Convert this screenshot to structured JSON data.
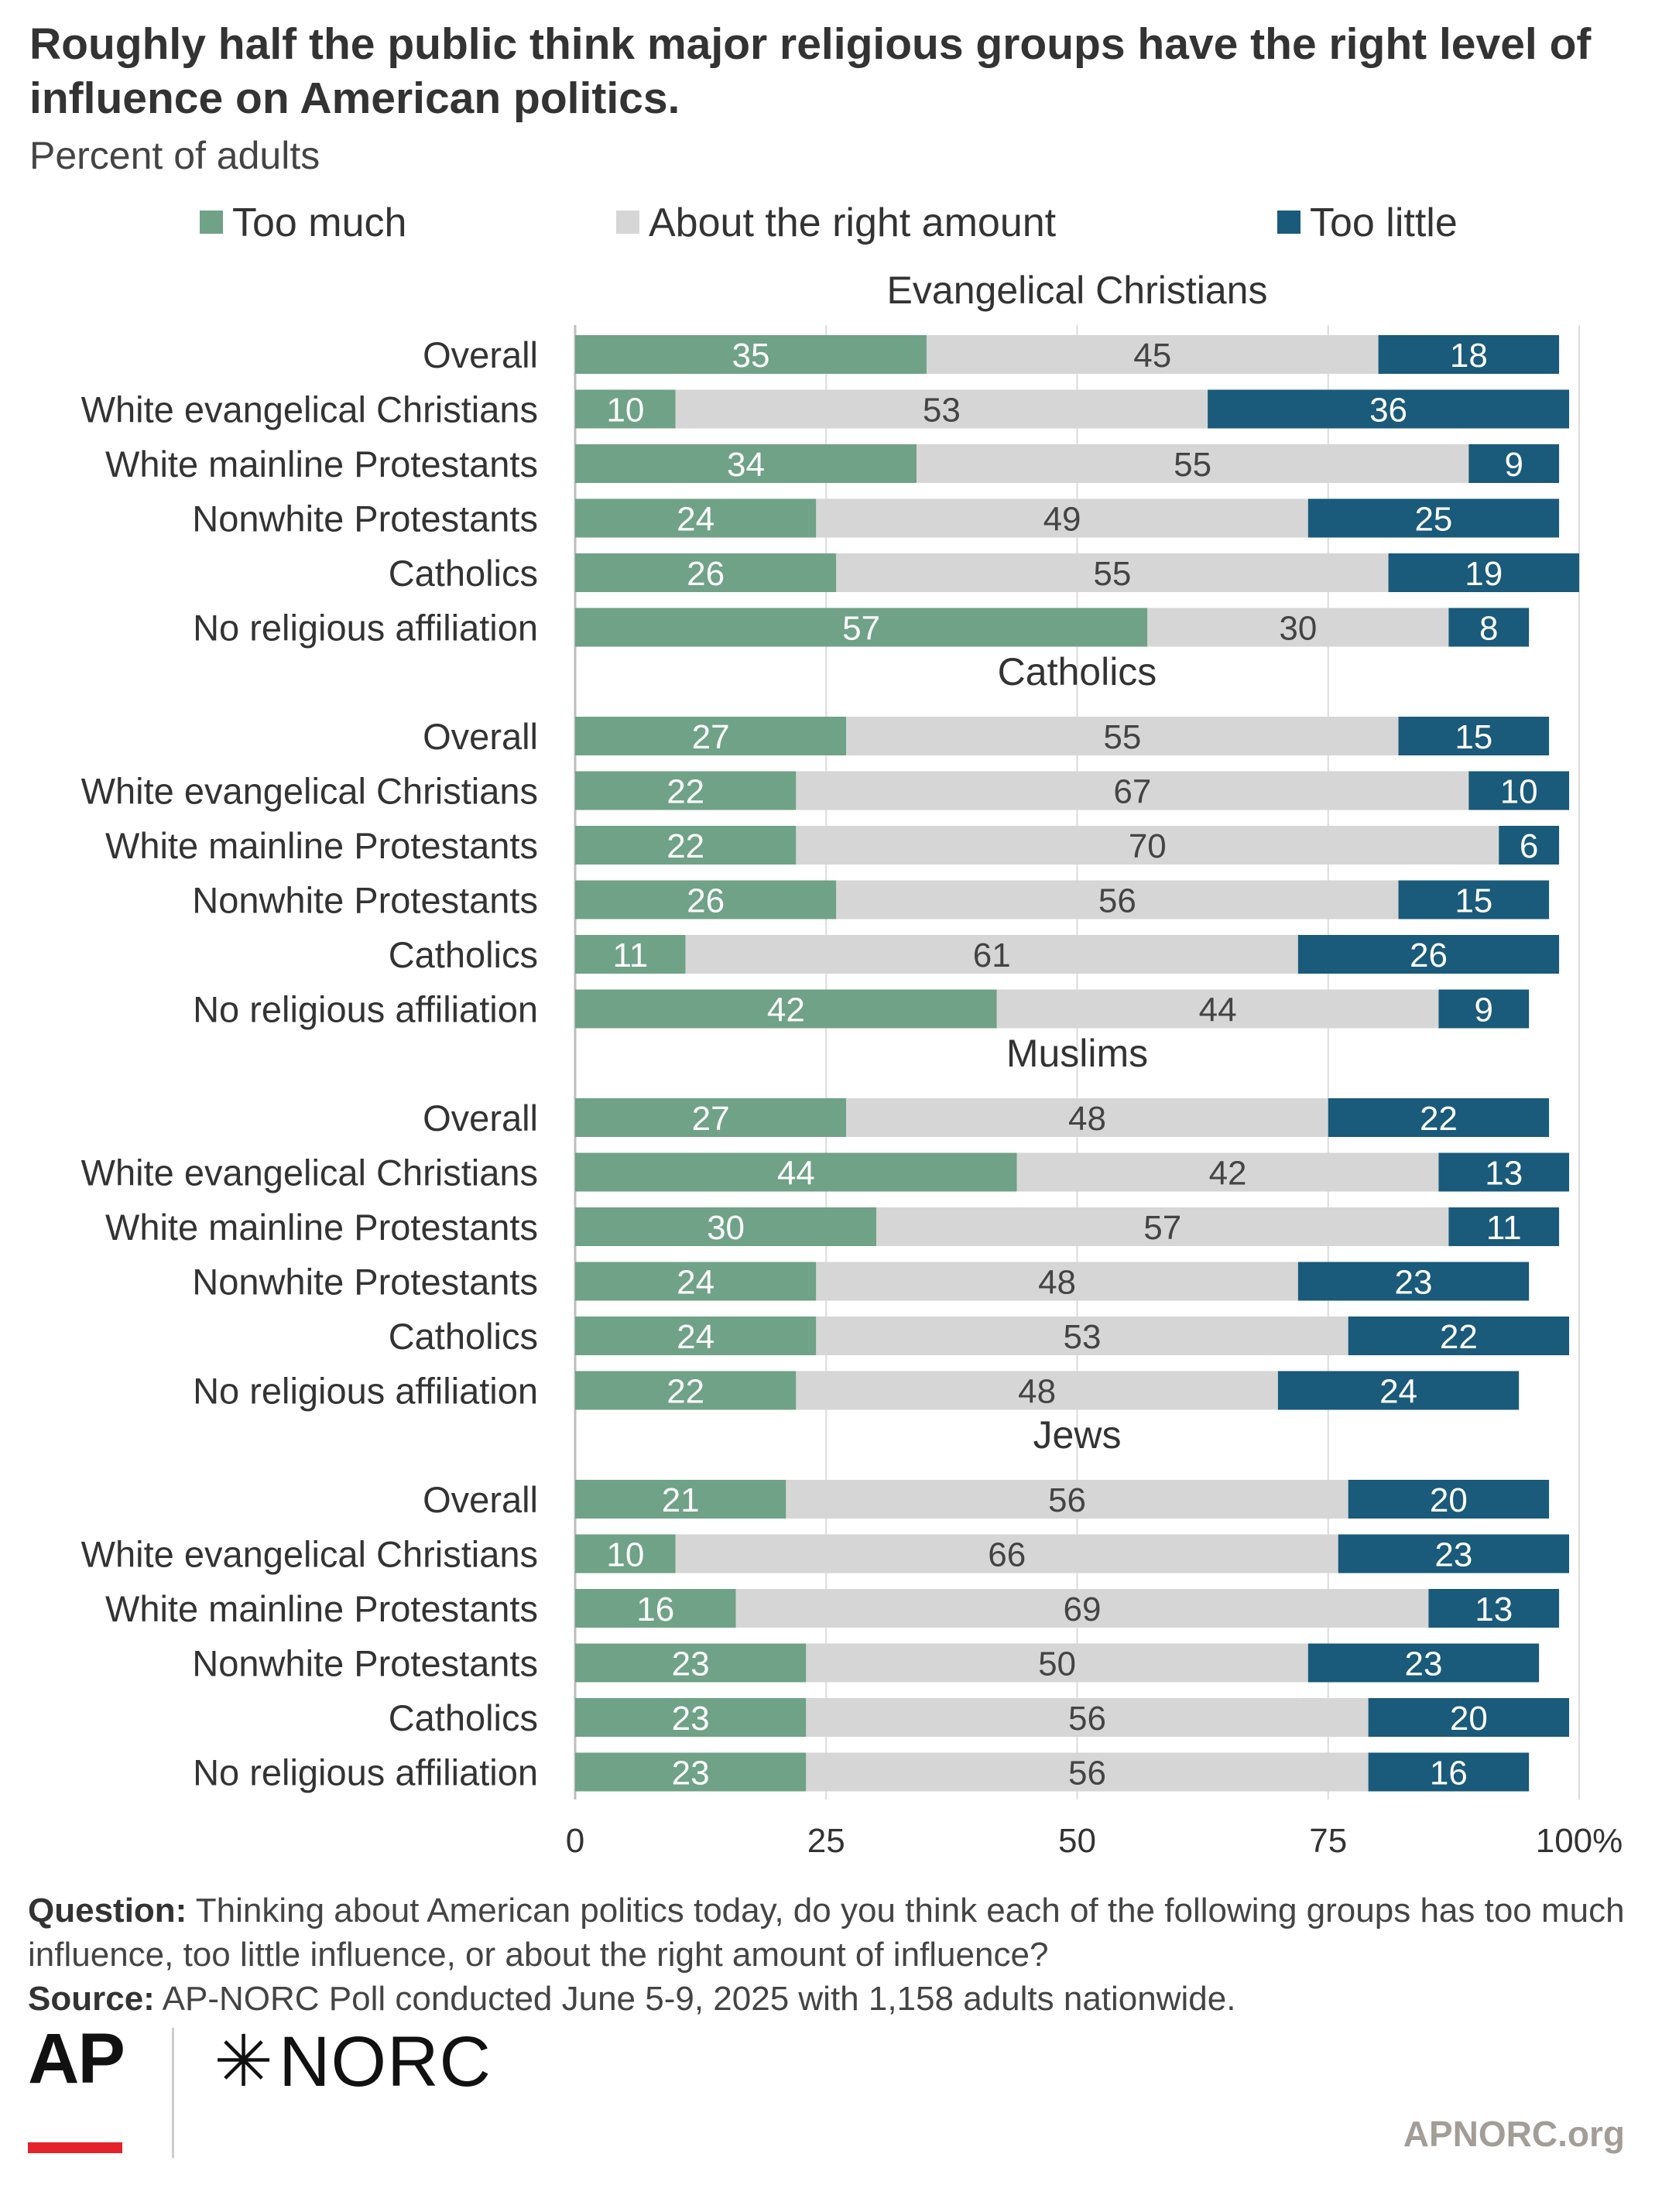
{
  "title": "Roughly half the public think major religious groups have the right level of influence on American politics.",
  "subtitle": "Percent of adults",
  "legend": {
    "too_much": "Too much",
    "about_right": "About the right amount",
    "too_little": "Too little"
  },
  "colors": {
    "too_much": "#6fa287",
    "about_right": "#d6d6d6",
    "too_little": "#1a5a7a"
  },
  "chart_data": {
    "type": "bar",
    "orientation": "horizontal-stacked",
    "xlim": [
      0,
      100
    ],
    "x_ticks": [
      "0",
      "25",
      "50",
      "75",
      "100%"
    ],
    "grid": true,
    "legend_position": "top",
    "series_names": [
      "Too much",
      "About the right amount",
      "Too little"
    ],
    "panels": [
      {
        "title": "Evangelical Christians",
        "categories": [
          "Overall",
          "White evangelical Christians",
          "White mainline Protestants",
          "Nonwhite Protestants",
          "Catholics",
          "No religious affiliation"
        ],
        "too_much": [
          35,
          10,
          34,
          24,
          26,
          57
        ],
        "about_right": [
          45,
          53,
          55,
          49,
          55,
          30
        ],
        "too_little": [
          18,
          36,
          9,
          25,
          19,
          8
        ]
      },
      {
        "title": "Catholics",
        "categories": [
          "Overall",
          "White evangelical Christians",
          "White mainline Protestants",
          "Nonwhite Protestants",
          "Catholics",
          "No religious affiliation"
        ],
        "too_much": [
          27,
          22,
          22,
          26,
          11,
          42
        ],
        "about_right": [
          55,
          67,
          70,
          56,
          61,
          44
        ],
        "too_little": [
          15,
          10,
          6,
          15,
          26,
          9
        ]
      },
      {
        "title": "Muslims",
        "categories": [
          "Overall",
          "White evangelical Christians",
          "White mainline Protestants",
          "Nonwhite Protestants",
          "Catholics",
          "No religious affiliation"
        ],
        "too_much": [
          27,
          44,
          30,
          24,
          24,
          22
        ],
        "about_right": [
          48,
          42,
          57,
          48,
          53,
          48
        ],
        "too_little": [
          22,
          13,
          11,
          23,
          22,
          24
        ]
      },
      {
        "title": "Jews",
        "categories": [
          "Overall",
          "White evangelical Christians",
          "White mainline Protestants",
          "Nonwhite Protestants",
          "Catholics",
          "No religious affiliation"
        ],
        "too_much": [
          21,
          10,
          16,
          23,
          23,
          23
        ],
        "about_right": [
          56,
          66,
          69,
          50,
          56,
          56
        ],
        "too_little": [
          20,
          23,
          13,
          23,
          20,
          16
        ]
      }
    ]
  },
  "notes": {
    "question_label": "Question:",
    "question_text": "Thinking about American politics today, do you think each of the following groups has too much influence, too little influence, or about the right amount of influence?",
    "source_label": "Source:",
    "source_text": "AP-NORC Poll conducted June 5-9, 2025 with 1,158 adults nationwide."
  },
  "branding": {
    "ap_logo": "AP",
    "norc_logo": "NORC",
    "norc_star_icon": "star-icon",
    "site": "APNORC.org"
  }
}
